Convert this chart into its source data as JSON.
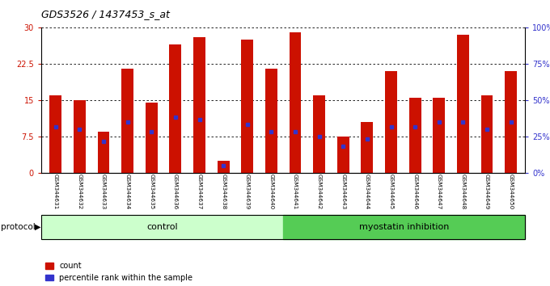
{
  "title": "GDS3526 / 1437453_s_at",
  "samples": [
    "GSM344631",
    "GSM344632",
    "GSM344633",
    "GSM344634",
    "GSM344635",
    "GSM344636",
    "GSM344637",
    "GSM344638",
    "GSM344639",
    "GSM344640",
    "GSM344641",
    "GSM344642",
    "GSM344643",
    "GSM344644",
    "GSM344645",
    "GSM344646",
    "GSM344647",
    "GSM344648",
    "GSM344649",
    "GSM344650"
  ],
  "counts": [
    16.0,
    15.0,
    8.5,
    21.5,
    14.5,
    26.5,
    28.0,
    2.5,
    27.5,
    21.5,
    29.0,
    16.0,
    7.5,
    10.5,
    21.0,
    15.5,
    15.5,
    28.5,
    16.0,
    21.0
  ],
  "percentile_ranks_left_scale": [
    9.5,
    9.0,
    6.5,
    10.5,
    8.5,
    11.5,
    11.0,
    1.5,
    10.0,
    8.5,
    8.5,
    7.5,
    5.5,
    7.0,
    9.5,
    9.5,
    10.5,
    10.5,
    9.0,
    10.5
  ],
  "control_count": 10,
  "bar_color": "#CC1100",
  "percentile_color": "#3333CC",
  "ylim_left": [
    0,
    30
  ],
  "ylim_right": [
    0,
    100
  ],
  "yticks_left": [
    0,
    7.5,
    15,
    22.5,
    30
  ],
  "yticks_right": [
    0,
    25,
    50,
    75,
    100
  ],
  "ytick_labels_left": [
    "0",
    "7.5",
    "15",
    "22.5",
    "30"
  ],
  "ytick_labels_right": [
    "0%",
    "25%",
    "50%",
    "75%",
    "100%"
  ],
  "control_label": "control",
  "myostatin_label": "myostatin inhibition",
  "protocol_label": "protocol",
  "legend_count_label": "count",
  "legend_percentile_label": "percentile rank within the sample",
  "background_xticklabels": "#d8d8d8",
  "background_control": "#ccffcc",
  "background_myostatin": "#55cc55",
  "bar_width": 0.5
}
